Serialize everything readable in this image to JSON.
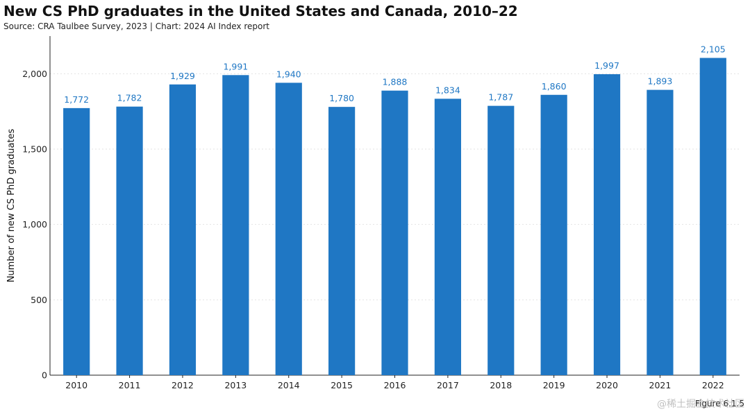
{
  "header": {
    "title": "New CS PhD graduates in the United States and Canada, 2010–22",
    "subtitle": "Source: CRA Taulbee Survey, 2023 | Chart: 2024 AI Index report"
  },
  "footer": {
    "figure_label": "Figure 6.1.5",
    "watermark": "@稀土掘金技术社区"
  },
  "colors": {
    "bar": "#1f77c4",
    "value_label": "#1f77c4",
    "gridline": "#e3e3e3",
    "axis": "#222222"
  },
  "chart_data": {
    "type": "bar",
    "categories": [
      "2010",
      "2011",
      "2012",
      "2013",
      "2014",
      "2015",
      "2016",
      "2017",
      "2018",
      "2019",
      "2020",
      "2021",
      "2022"
    ],
    "values": [
      1772,
      1782,
      1929,
      1991,
      1940,
      1780,
      1888,
      1834,
      1787,
      1860,
      1997,
      1893,
      2105
    ],
    "value_labels": [
      "1,772",
      "1,782",
      "1,929",
      "1,991",
      "1,940",
      "1,780",
      "1,888",
      "1,834",
      "1,787",
      "1,860",
      "1,997",
      "1,893",
      "2,105"
    ],
    "title": "New CS PhD graduates in the United States and Canada, 2010–22",
    "xlabel": "",
    "ylabel": "Number of new CS PhD graduates",
    "ylim": [
      0,
      2250
    ],
    "yticks": [
      0,
      500,
      1000,
      1500,
      2000
    ],
    "ytick_labels": [
      "0",
      "500",
      "1,000",
      "1,500",
      "2,000"
    ],
    "grid": true,
    "legend": "none"
  }
}
